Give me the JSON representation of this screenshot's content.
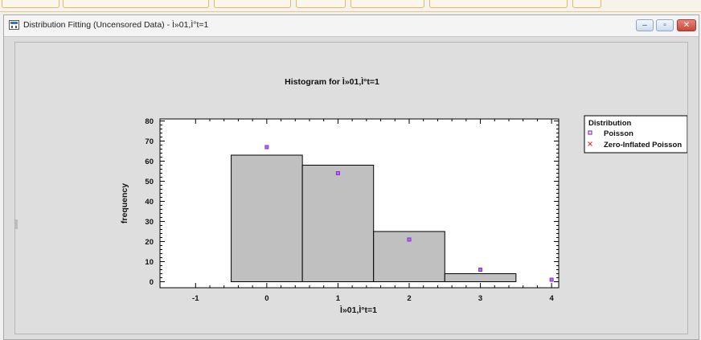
{
  "window": {
    "title": "Distribution Fitting (Uncensored Data) - Ì»01,Ì°t=1",
    "buttons": {
      "minimize": "–",
      "restore": "▫",
      "close": "✕"
    }
  },
  "colors": {
    "bar_fill": "#c0c0c0",
    "bar_stroke": "#000000",
    "poisson": "#8a2be2",
    "zip": "#e03030"
  },
  "chart_data": {
    "type": "bar",
    "title": "Histogram for Ì»01,Ì°t=1",
    "xlabel": "Ì»01,Ì°t=1",
    "ylabel": "frequency",
    "xlim": [
      -1.5,
      4.1
    ],
    "ylim": [
      -3,
      81
    ],
    "xticks": [
      -1,
      0,
      1,
      2,
      3,
      4
    ],
    "yticks": [
      0,
      10,
      20,
      30,
      40,
      50,
      60,
      70,
      80
    ],
    "bars": [
      {
        "x": 0,
        "value": 63
      },
      {
        "x": 1,
        "value": 58
      },
      {
        "x": 2,
        "value": 25
      },
      {
        "x": 3,
        "value": 4
      }
    ],
    "bar_width": 1,
    "series": [
      {
        "name": "Poisson",
        "marker": "square",
        "x": [
          0,
          1,
          2,
          3,
          4
        ],
        "values": [
          67,
          54,
          21,
          6,
          1
        ]
      },
      {
        "name": "Zero-Inflated Poisson",
        "marker": "x",
        "x": [
          0,
          1,
          2,
          3,
          4
        ],
        "values": [
          67,
          54,
          21,
          6,
          1
        ]
      }
    ],
    "legend": {
      "title": "Distribution",
      "position": "right"
    }
  }
}
